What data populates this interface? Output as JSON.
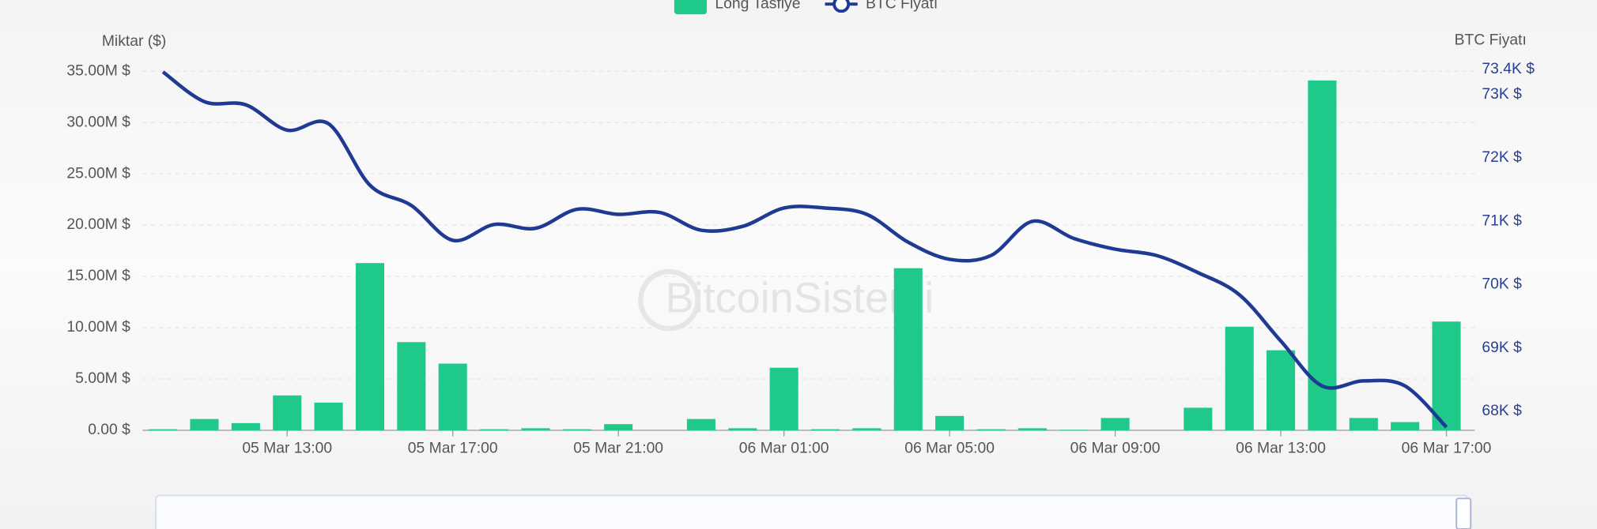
{
  "chart_data": {
    "type": "bar_line",
    "legend": [
      "Long Tasfiye",
      "BTC Fiyatı"
    ],
    "y_label": "Miktar ($)",
    "y2_label": "BTC Fiyatı",
    "watermark": "BitcoinSistemi",
    "categories": [
      null,
      null,
      null,
      "05 Mar 13:00",
      null,
      null,
      null,
      "05 Mar 17:00",
      null,
      null,
      null,
      "05 Mar 21:00",
      null,
      null,
      null,
      "06 Mar 01:00",
      null,
      null,
      null,
      "06 Mar 05:00",
      null,
      null,
      null,
      "06 Mar 09:00",
      null,
      null,
      null,
      "06 Mar 13:00",
      null,
      null,
      null,
      "06 Mar 17:00"
    ],
    "series": [
      {
        "name": "Long Tasfiye",
        "color": "#1ec98a",
        "type": "bar",
        "values": [
          0.1,
          1.1,
          0.7,
          3.4,
          2.7,
          16.3,
          8.6,
          6.5,
          0.1,
          0.2,
          0.1,
          0.6,
          0,
          1.1,
          0.2,
          6.1,
          0.1,
          0.2,
          15.8,
          1.4,
          0.1,
          0.2,
          0.05,
          1.2,
          0,
          2.2,
          10.1,
          7.8,
          34.1,
          1.2,
          0.8,
          10.6
        ]
      },
      {
        "name": "BTC Fiyatı",
        "color": "#1f3a93",
        "type": "line",
        "axis": "y2",
        "values": [
          73.36,
          72.89,
          72.84,
          72.44,
          72.54,
          71.57,
          71.25,
          70.7,
          70.95,
          70.89,
          71.19,
          71.11,
          71.14,
          70.86,
          70.92,
          71.21,
          71.21,
          71.11,
          70.67,
          70.4,
          70.46,
          71.0,
          70.73,
          70.56,
          70.46,
          70.19,
          69.84,
          69.11,
          68.4,
          68.48,
          68.4,
          67.75
        ]
      }
    ],
    "ylim": [
      0,
      35
    ],
    "yticks": [
      {
        "value": 0,
        "label": "0.00 $"
      },
      {
        "value": 5,
        "label": "5.00M $"
      },
      {
        "value": 10,
        "label": "10.00M $"
      },
      {
        "value": 15,
        "label": "15.00M $"
      },
      {
        "value": 20,
        "label": "20.00M $"
      },
      {
        "value": 25,
        "label": "25.00M $"
      },
      {
        "value": 30,
        "label": "30.00M $"
      },
      {
        "value": 35,
        "label": "35.00M $"
      }
    ],
    "y2lim": [
      67.7,
      73.37
    ],
    "y2ticks": [
      {
        "value": 68,
        "label": "68K $"
      },
      {
        "value": 69,
        "label": "69K $"
      },
      {
        "value": 70,
        "label": "70K $"
      },
      {
        "value": 71,
        "label": "71K $"
      },
      {
        "value": 72,
        "label": "72K $"
      },
      {
        "value": 73,
        "label": "73K $"
      },
      {
        "value": 73.4,
        "label": "73.4K $"
      }
    ],
    "grid": true
  }
}
